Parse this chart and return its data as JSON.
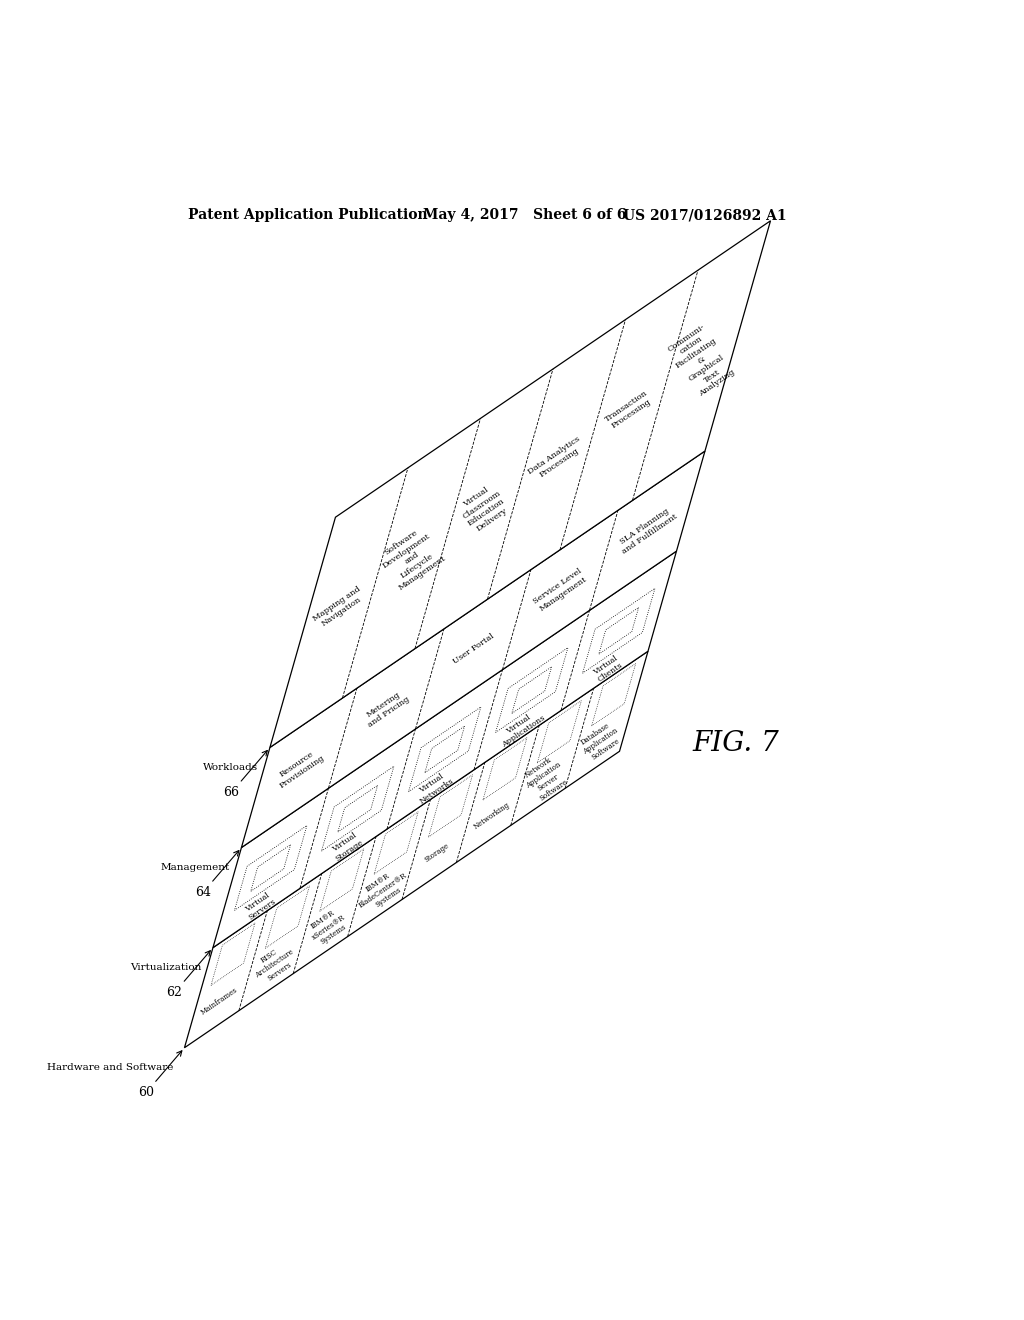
{
  "title": "FIG. 7",
  "patent_header_left": "Patent Application Publication",
  "patent_header_mid": "May 4, 2017   Sheet 6 of 6",
  "patent_header_right": "US 2017/0126892 A1",
  "background_color": "#ffffff",
  "workload_items": [
    "Mapping and\nNavigation",
    "Software\nDevelopment\nand\nLifecycle\nManagement",
    "Virtual\nClassroom\nEducation\nDelivery",
    "Data Analytics\nProcessing",
    "Transaction\nProcessing",
    "Communi-\ncation\nFacilitating\n&\nGraphical\nText\nAnalyzing"
  ],
  "management_items": [
    "Resource\nProvisioning",
    "Metering\nand Pricing",
    "User Portal",
    "Service Level\nManagement",
    "SLA Planning\nand Fulfillment"
  ],
  "virtualization_items": [
    "Virtual\nServers",
    "Virtual\nStorage",
    "Virtual\nNetworks",
    "Virtual\nApplications",
    "Virtual\nClients"
  ],
  "hardware_items": [
    "Mainframes",
    "RISC\nArchitecture\nServers",
    "IBM®R\nxSeries®R\nSystems",
    "IBM®R\nBladeCenter®R\nSystems",
    "Storage",
    "Networking",
    "Network\nApplication\nServer\nSoftware",
    "Database\nApplication\nSoftware"
  ],
  "layer_names": [
    "Workloads",
    "Management",
    "Virtualization",
    "Hardware and Software"
  ],
  "layer_numbers": [
    "66",
    "64",
    "62",
    "60"
  ]
}
